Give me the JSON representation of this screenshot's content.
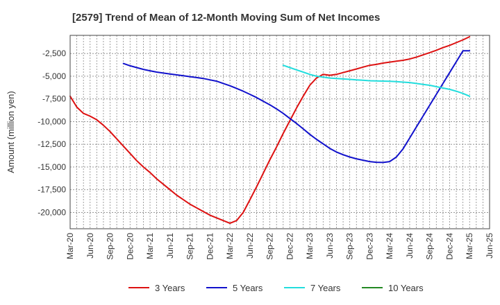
{
  "chart_data": {
    "type": "line",
    "title": "[2579]  Trend of Mean of 12-Month Moving Sum of Net Incomes",
    "ylabel": "Amount (million yen)",
    "xlabel": "",
    "ylim": [
      -21800,
      -500
    ],
    "xlim": [
      "2020-03",
      "2025-06"
    ],
    "grid": true,
    "legend_position": "bottom",
    "x_ticks": [
      "Mar-20",
      "Jun-20",
      "Sep-20",
      "Dec-20",
      "Mar-21",
      "Jun-21",
      "Sep-21",
      "Dec-21",
      "Mar-22",
      "Jun-22",
      "Sep-22",
      "Dec-22",
      "Mar-23",
      "Jun-23",
      "Sep-23",
      "Dec-23",
      "Mar-24",
      "Jun-24",
      "Sep-24",
      "Dec-24",
      "Mar-25",
      "Jun-25"
    ],
    "y_ticks": [
      -2500,
      -5000,
      -7500,
      -10000,
      -12500,
      -15000,
      -17500,
      -20000
    ],
    "y_tick_labels": [
      "-2,500",
      "-5,000",
      "-7,500",
      "-10,000",
      "-12,500",
      "-15,000",
      "-17,500",
      "-20,000"
    ],
    "series": [
      {
        "name": "3 Years",
        "color": "#dd1111",
        "points": [
          [
            "2020-03",
            -7200
          ],
          [
            "2020-04",
            -8400
          ],
          [
            "2020-05",
            -9100
          ],
          [
            "2020-06",
            -9400
          ],
          [
            "2020-07",
            -9800
          ],
          [
            "2020-08",
            -10400
          ],
          [
            "2020-09",
            -11100
          ],
          [
            "2020-10",
            -11900
          ],
          [
            "2020-11",
            -12700
          ],
          [
            "2020-12",
            -13500
          ],
          [
            "2021-01",
            -14300
          ],
          [
            "2021-02",
            -15000
          ],
          [
            "2021-03",
            -15600
          ],
          [
            "2021-04",
            -16300
          ],
          [
            "2021-05",
            -16900
          ],
          [
            "2021-06",
            -17500
          ],
          [
            "2021-07",
            -18100
          ],
          [
            "2021-08",
            -18600
          ],
          [
            "2021-09",
            -19100
          ],
          [
            "2021-10",
            -19500
          ],
          [
            "2021-11",
            -19900
          ],
          [
            "2021-12",
            -20300
          ],
          [
            "2022-01",
            -20600
          ],
          [
            "2022-02",
            -20900
          ],
          [
            "2022-03",
            -21200
          ],
          [
            "2022-04",
            -20900
          ],
          [
            "2022-05",
            -20000
          ],
          [
            "2022-06",
            -18600
          ],
          [
            "2022-07",
            -17200
          ],
          [
            "2022-08",
            -15700
          ],
          [
            "2022-09",
            -14200
          ],
          [
            "2022-10",
            -12800
          ],
          [
            "2022-11",
            -11300
          ],
          [
            "2022-12",
            -9900
          ],
          [
            "2023-01",
            -8500
          ],
          [
            "2023-02",
            -7200
          ],
          [
            "2023-03",
            -6000
          ],
          [
            "2023-04",
            -5200
          ],
          [
            "2023-05",
            -4800
          ],
          [
            "2023-06",
            -4900
          ],
          [
            "2023-07",
            -4800
          ],
          [
            "2023-08",
            -4600
          ],
          [
            "2023-09",
            -4400
          ],
          [
            "2023-10",
            -4200
          ],
          [
            "2023-11",
            -4000
          ],
          [
            "2023-12",
            -3800
          ],
          [
            "2024-01",
            -3700
          ],
          [
            "2024-02",
            -3550
          ],
          [
            "2024-03",
            -3450
          ],
          [
            "2024-04",
            -3350
          ],
          [
            "2024-05",
            -3250
          ],
          [
            "2024-06",
            -3100
          ],
          [
            "2024-07",
            -2900
          ],
          [
            "2024-08",
            -2650
          ],
          [
            "2024-09",
            -2400
          ],
          [
            "2024-10",
            -2150
          ],
          [
            "2024-11",
            -1850
          ],
          [
            "2024-12",
            -1600
          ],
          [
            "2025-01",
            -1300
          ],
          [
            "2025-02",
            -1000
          ],
          [
            "2025-03",
            -650
          ]
        ]
      },
      {
        "name": "5 Years",
        "color": "#1111cc",
        "points": [
          [
            "2020-11",
            -3600
          ],
          [
            "2020-12",
            -3850
          ],
          [
            "2021-01",
            -4050
          ],
          [
            "2021-02",
            -4250
          ],
          [
            "2021-03",
            -4400
          ],
          [
            "2021-04",
            -4550
          ],
          [
            "2021-05",
            -4650
          ],
          [
            "2021-06",
            -4750
          ],
          [
            "2021-07",
            -4850
          ],
          [
            "2021-08",
            -4950
          ],
          [
            "2021-09",
            -5050
          ],
          [
            "2021-10",
            -5150
          ],
          [
            "2021-11",
            -5250
          ],
          [
            "2021-12",
            -5400
          ],
          [
            "2022-01",
            -5550
          ],
          [
            "2022-02",
            -5800
          ],
          [
            "2022-03",
            -6050
          ],
          [
            "2022-04",
            -6350
          ],
          [
            "2022-05",
            -6650
          ],
          [
            "2022-06",
            -7000
          ],
          [
            "2022-07",
            -7350
          ],
          [
            "2022-08",
            -7750
          ],
          [
            "2022-09",
            -8150
          ],
          [
            "2022-10",
            -8600
          ],
          [
            "2022-11",
            -9100
          ],
          [
            "2022-12",
            -9650
          ],
          [
            "2023-01",
            -10200
          ],
          [
            "2023-02",
            -10800
          ],
          [
            "2023-03",
            -11400
          ],
          [
            "2023-04",
            -11950
          ],
          [
            "2023-05",
            -12450
          ],
          [
            "2023-06",
            -12950
          ],
          [
            "2023-07",
            -13350
          ],
          [
            "2023-08",
            -13650
          ],
          [
            "2023-09",
            -13900
          ],
          [
            "2023-10",
            -14100
          ],
          [
            "2023-11",
            -14250
          ],
          [
            "2023-12",
            -14400
          ],
          [
            "2024-01",
            -14480
          ],
          [
            "2024-02",
            -14500
          ],
          [
            "2024-03",
            -14400
          ],
          [
            "2024-04",
            -13900
          ],
          [
            "2024-05",
            -13000
          ],
          [
            "2024-06",
            -11800
          ],
          [
            "2024-07",
            -10600
          ],
          [
            "2024-08",
            -9400
          ],
          [
            "2024-09",
            -8200
          ],
          [
            "2024-10",
            -7000
          ],
          [
            "2024-11",
            -5800
          ],
          [
            "2024-12",
            -4600
          ],
          [
            "2025-01",
            -3400
          ],
          [
            "2025-02",
            -2200
          ],
          [
            "2025-03",
            -2200
          ]
        ]
      },
      {
        "name": "7 Years",
        "color": "#22dddd",
        "points": [
          [
            "2022-11",
            -3800
          ],
          [
            "2022-12",
            -4050
          ],
          [
            "2023-01",
            -4300
          ],
          [
            "2023-02",
            -4550
          ],
          [
            "2023-03",
            -4800
          ],
          [
            "2023-04",
            -5000
          ],
          [
            "2023-05",
            -5100
          ],
          [
            "2023-06",
            -5200
          ],
          [
            "2023-07",
            -5250
          ],
          [
            "2023-08",
            -5300
          ],
          [
            "2023-09",
            -5350
          ],
          [
            "2023-10",
            -5400
          ],
          [
            "2023-11",
            -5450
          ],
          [
            "2023-12",
            -5500
          ],
          [
            "2024-01",
            -5520
          ],
          [
            "2024-02",
            -5540
          ],
          [
            "2024-03",
            -5560
          ],
          [
            "2024-04",
            -5600
          ],
          [
            "2024-05",
            -5650
          ],
          [
            "2024-06",
            -5700
          ],
          [
            "2024-07",
            -5800
          ],
          [
            "2024-08",
            -5900
          ],
          [
            "2024-09",
            -6000
          ],
          [
            "2024-10",
            -6150
          ],
          [
            "2024-11",
            -6300
          ],
          [
            "2024-12",
            -6450
          ],
          [
            "2025-01",
            -6650
          ],
          [
            "2025-02",
            -6900
          ],
          [
            "2025-03",
            -7200
          ]
        ]
      },
      {
        "name": "10 Years",
        "color": "#228822",
        "points": []
      }
    ]
  }
}
